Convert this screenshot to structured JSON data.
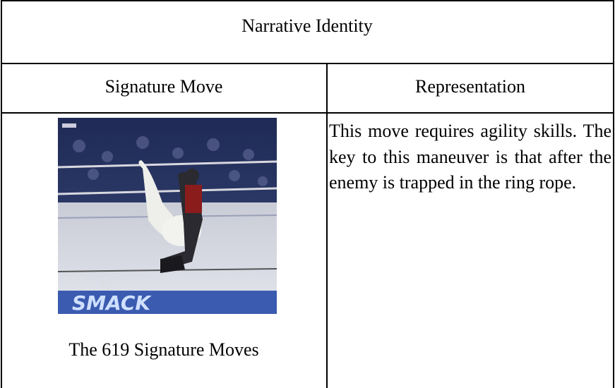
{
  "table": {
    "title": "Narrative Identity",
    "headers": [
      "Signature Move",
      "Representation"
    ],
    "rows": [
      [
        "The 619 Signature Moves",
        "This move requires agility skills. The key to this maneuver is that after the enemy is trapped in the ring rope."
      ]
    ]
  }
}
